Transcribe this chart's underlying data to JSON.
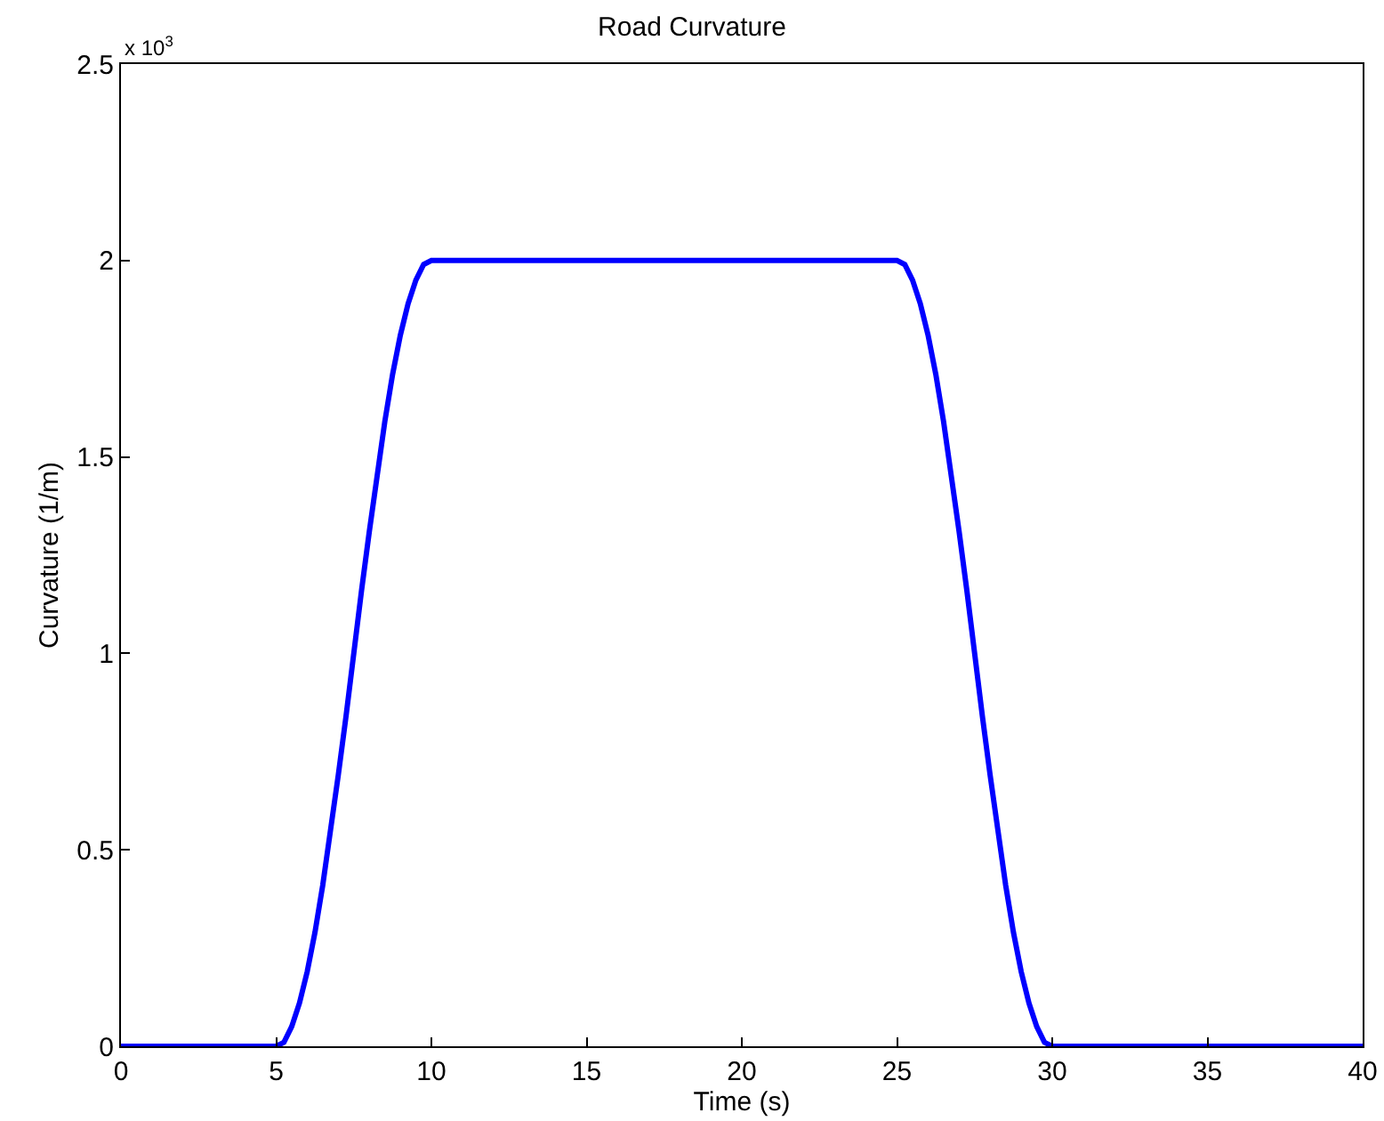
{
  "chart_data": {
    "type": "line",
    "title": "Road Curvature",
    "xlabel": "Time (s)",
    "ylabel": "Curvature (1/m)",
    "annotations": [
      "x 10$^{3}$"
    ],
    "x": [
      0,
      5,
      5.25,
      5.5,
      5.75,
      6,
      6.25,
      6.5,
      6.75,
      7,
      7.25,
      7.5,
      7.75,
      8,
      8.25,
      8.5,
      8.75,
      9,
      9.25,
      9.5,
      9.75,
      10,
      25,
      25.25,
      25.5,
      25.75,
      26,
      26.25,
      26.5,
      26.75,
      27,
      27.25,
      27.5,
      27.75,
      28,
      28.25,
      28.5,
      28.75,
      29,
      29.25,
      29.5,
      29.75,
      30,
      40
    ],
    "series": [
      {
        "color": "#0000ff",
        "values": [
          0,
          0,
          0.01,
          0.05,
          0.11,
          0.19,
          0.29,
          0.41,
          0.55,
          0.69,
          0.84,
          1,
          1.16,
          1.31,
          1.45,
          1.59,
          1.71,
          1.81,
          1.89,
          1.95,
          1.99,
          2,
          2,
          1.99,
          1.95,
          1.89,
          1.81,
          1.71,
          1.59,
          1.45,
          1.31,
          1.16,
          1,
          0.84,
          0.69,
          0.55,
          0.41,
          0.29,
          0.19,
          0.11,
          0.05,
          0.01,
          0,
          0
        ]
      }
    ],
    "xlim": [
      0,
      40
    ],
    "xticks": [
      0,
      5,
      10,
      15,
      20,
      25,
      30,
      35,
      40
    ],
    "ylim": [
      0,
      2.5
    ],
    "yticks": [
      0,
      0.5,
      1,
      1.5,
      2,
      2.5
    ],
    "grid": false,
    "marker": "none",
    "line_style": "solid"
  }
}
